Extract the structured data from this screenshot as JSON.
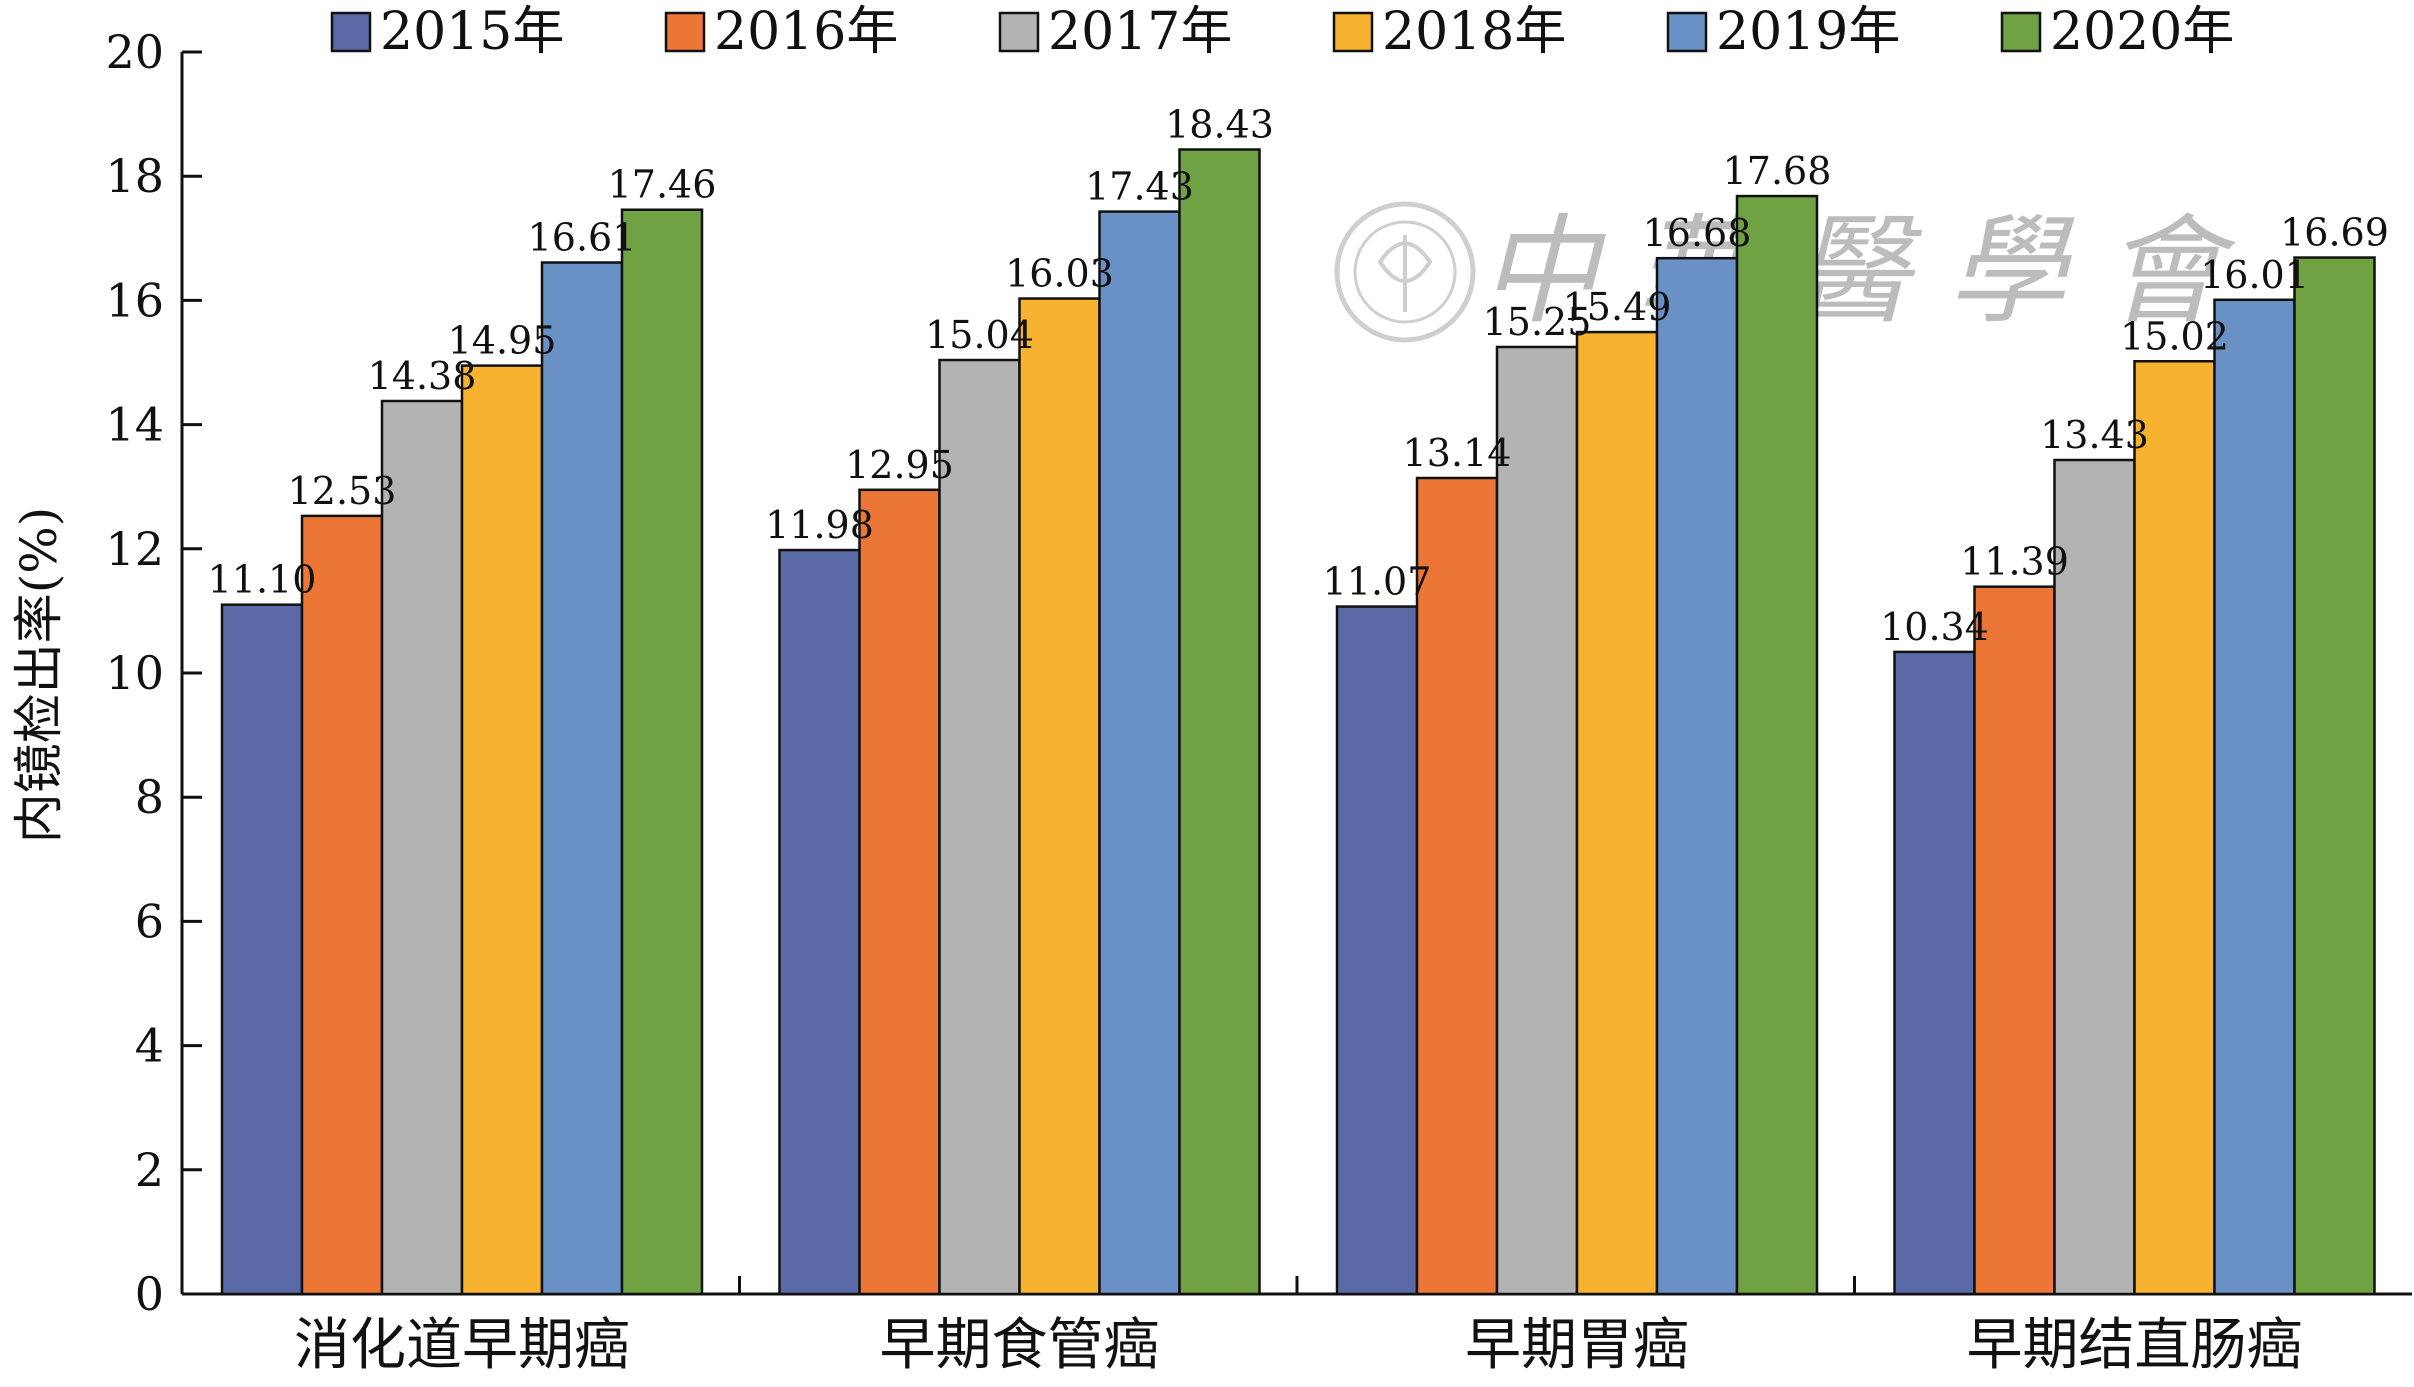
{
  "chart_data": {
    "type": "bar",
    "title": "",
    "xlabel": "",
    "ylabel": "内镜检出率(%)",
    "ylim": [
      0,
      20
    ],
    "yticks": [
      0,
      2,
      4,
      6,
      8,
      10,
      12,
      14,
      16,
      18,
      20
    ],
    "yticks_text": [
      "0",
      "2",
      "4",
      "6",
      "8",
      "10",
      "12",
      "14",
      "16",
      "18",
      "20"
    ],
    "categories": [
      "消化道早期癌",
      "早期食管癌",
      "早期胃癌",
      "早期结直肠癌"
    ],
    "legend_position": "top",
    "grid": false,
    "series": [
      {
        "name": "2015年",
        "color": "#5a6aa7",
        "values": [
          11.1,
          11.98,
          11.07,
          10.34
        ],
        "labels": [
          "11.10",
          "11.98",
          "11.07",
          "10.34"
        ]
      },
      {
        "name": "2016年",
        "color": "#ec7636",
        "values": [
          12.53,
          12.95,
          13.14,
          11.39
        ],
        "labels": [
          "12.53",
          "12.95",
          "13.14",
          "11.39"
        ]
      },
      {
        "name": "2017年",
        "color": "#b3b3b3",
        "values": [
          14.38,
          15.04,
          15.25,
          13.43
        ],
        "labels": [
          "14.38",
          "15.04",
          "15.25",
          "13.43"
        ]
      },
      {
        "name": "2018年",
        "color": "#f7b330",
        "values": [
          14.95,
          16.03,
          15.49,
          15.02
        ],
        "labels": [
          "14.95",
          "16.03",
          "15.49",
          "15.02"
        ]
      },
      {
        "name": "2019年",
        "color": "#6a91c6",
        "values": [
          16.61,
          17.43,
          16.68,
          16.01
        ],
        "labels": [
          "16.61",
          "17.43",
          "16.68",
          "16.01"
        ]
      },
      {
        "name": "2020年",
        "color": "#70a143",
        "values": [
          17.46,
          18.43,
          17.68,
          16.69
        ],
        "labels": [
          "17.46",
          "18.43",
          "17.68",
          "16.69"
        ]
      }
    ]
  },
  "watermark": {
    "text": "中華醫學會",
    "icon": "society-seal-icon"
  }
}
